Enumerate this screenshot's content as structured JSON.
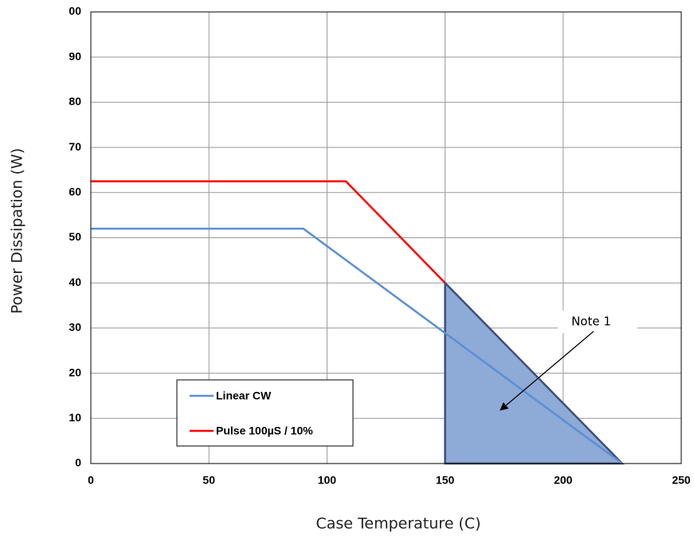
{
  "chart_data": {
    "type": "line",
    "xlabel": "Case Temperature (C)",
    "ylabel": "Power Dissipation (W)",
    "xlim": [
      0,
      250
    ],
    "xticks": [
      0,
      50,
      100,
      150,
      200,
      250
    ],
    "ylim": [
      0,
      100
    ],
    "yticks": [
      0,
      10,
      20,
      30,
      40,
      50,
      60,
      70,
      80,
      90,
      {
        "value": 100,
        "label": "00"
      }
    ],
    "grid": true,
    "series": [
      {
        "name": "Linear CW",
        "color": "#5b8fd4",
        "x": [
          0,
          90,
          225
        ],
        "values": [
          52,
          52,
          0
        ]
      },
      {
        "name": "Pulse 100µS / 10%",
        "color": "#ff0000",
        "x": [
          0,
          108,
          150
        ],
        "values": [
          62.5,
          62.5,
          40
        ]
      }
    ],
    "region": {
      "color": "#8eaad6",
      "x": [
        150,
        150,
        225
      ],
      "values": [
        0,
        40,
        0
      ]
    },
    "annotation": "Note 1"
  }
}
